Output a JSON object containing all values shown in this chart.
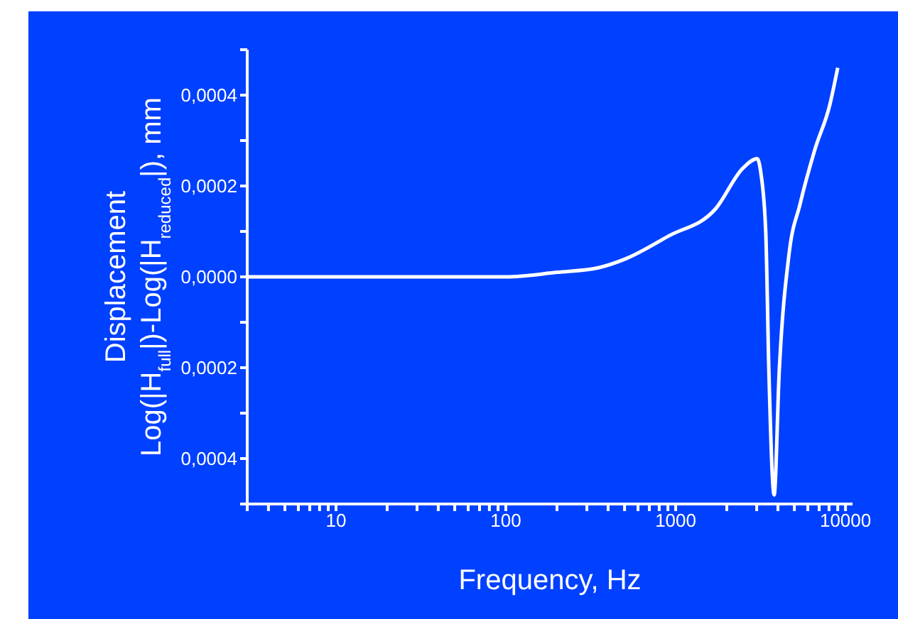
{
  "chart_data": {
    "type": "line",
    "xlabel": "Frequency, Hz",
    "ylabel": "Displacement\nLog(|H$_{full}$|)-Log(|H$_{reduced}$|), mm",
    "log": "x",
    "grid": false,
    "legend": false,
    "marker": "none",
    "line_style": "solid",
    "xlim": [
      3,
      11000
    ],
    "xticks": [
      {
        "value": 3,
        "label": null
      },
      {
        "value": 4,
        "label": null
      },
      {
        "value": 5,
        "label": null
      },
      {
        "value": 6,
        "label": null
      },
      {
        "value": 7,
        "label": null
      },
      {
        "value": 8,
        "label": null
      },
      {
        "value": 9,
        "label": null
      },
      10,
      {
        "value": 20,
        "label": null
      },
      {
        "value": 30,
        "label": null
      },
      {
        "value": 40,
        "label": null
      },
      {
        "value": 50,
        "label": null
      },
      {
        "value": 60,
        "label": null
      },
      {
        "value": 70,
        "label": null
      },
      {
        "value": 80,
        "label": null
      },
      {
        "value": 90,
        "label": null
      },
      100,
      {
        "value": 200,
        "label": null
      },
      {
        "value": 300,
        "label": null
      },
      {
        "value": 400,
        "label": null
      },
      {
        "value": 500,
        "label": null
      },
      {
        "value": 600,
        "label": null
      },
      {
        "value": 700,
        "label": null
      },
      {
        "value": 800,
        "label": null
      },
      {
        "value": 900,
        "label": null
      },
      1000,
      {
        "value": 2000,
        "label": null
      },
      {
        "value": 3000,
        "label": null
      },
      {
        "value": 4000,
        "label": null
      },
      {
        "value": 5000,
        "label": null
      },
      {
        "value": 6000,
        "label": null
      },
      {
        "value": 7000,
        "label": null
      },
      {
        "value": 8000,
        "label": null
      },
      {
        "value": 9000,
        "label": null
      },
      10000
    ],
    "ylim": [
      -0.0005,
      0.0005
    ],
    "yticks": [
      {
        "value": -0.0005,
        "label": null
      },
      {
        "value": -0.0004,
        "label": "0,0004"
      },
      {
        "value": -0.0003,
        "label": null
      },
      {
        "value": -0.0002,
        "label": "0,0002"
      },
      {
        "value": -0.0001,
        "label": null
      },
      {
        "value": 0,
        "label": "0,0000"
      },
      {
        "value": 0.0001,
        "label": null
      },
      {
        "value": 0.0002,
        "label": "0,0002"
      },
      {
        "value": 0.0003,
        "label": null
      },
      {
        "value": 0.0004,
        "label": "0,0004"
      },
      {
        "value": 0.0005,
        "label": null
      }
    ],
    "series": [
      {
        "color": "#ffffff",
        "x": [
          3,
          10,
          30,
          100,
          200,
          350,
          510,
          910,
          1720,
          2500,
          3020,
          3170,
          3390,
          3540,
          3800,
          4070,
          4650,
          5400,
          6600,
          8100,
          9000
        ],
        "values": [
          0,
          0,
          0,
          0,
          1e-05,
          2e-05,
          4e-05,
          9e-05,
          0.00015,
          0.00024,
          0.00026,
          0.00023,
          0.0001,
          -0.00021,
          -0.00048,
          -0.00021,
          5e-05,
          0.00016,
          0.00028,
          0.00038,
          0.00046
        ]
      }
    ]
  }
}
